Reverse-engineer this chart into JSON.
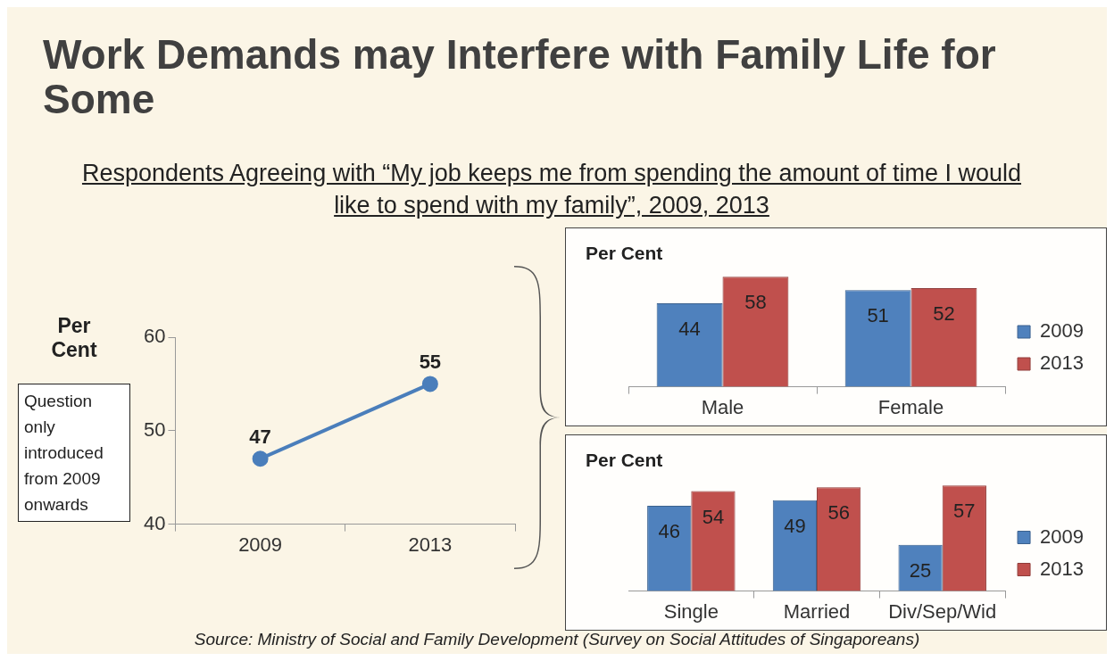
{
  "chart_data": [
    {
      "type": "line",
      "title": "Work Demands may Interfere with Family Life for Some",
      "subtitle": "Respondents Agreeing with “My job keeps me from spending the amount of time I would like to spend with my family”, 2009, 2013",
      "ylabel": "Per Cent",
      "categories": [
        "2009",
        "2013"
      ],
      "series": [
        {
          "color": "#4a7ebb",
          "values": [
            47,
            55
          ]
        }
      ],
      "ylim": [
        40,
        60
      ],
      "yticks": [
        40,
        50,
        60
      ],
      "grid": false,
      "marker": "circle",
      "data_labels": true,
      "legend": false,
      "annotations": [
        "Question only introduced from 2009 onwards",
        "Source: Ministry of Social and Family Development (Survey on Social Attitudes of Singaporeans)"
      ]
    },
    {
      "type": "bar",
      "ylabel": "Per Cent",
      "categories": [
        "Male",
        "Female"
      ],
      "series": [
        {
          "name": "2009",
          "color": "#4f81bd",
          "values": [
            44,
            51
          ]
        },
        {
          "name": "2013",
          "color": "#c0504d",
          "values": [
            58,
            52
          ]
        }
      ],
      "data_labels": true,
      "legend": "right",
      "grid": false
    },
    {
      "type": "bar",
      "ylabel": "Per Cent",
      "categories": [
        "Single",
        "Married",
        "Div/Sep/Wid"
      ],
      "series": [
        {
          "name": "2009",
          "color": "#4f81bd",
          "values": [
            46,
            49,
            25
          ]
        },
        {
          "name": "2013",
          "color": "#c0504d",
          "values": [
            54,
            56,
            57
          ]
        }
      ],
      "data_labels": true,
      "legend": "right",
      "grid": false
    }
  ]
}
